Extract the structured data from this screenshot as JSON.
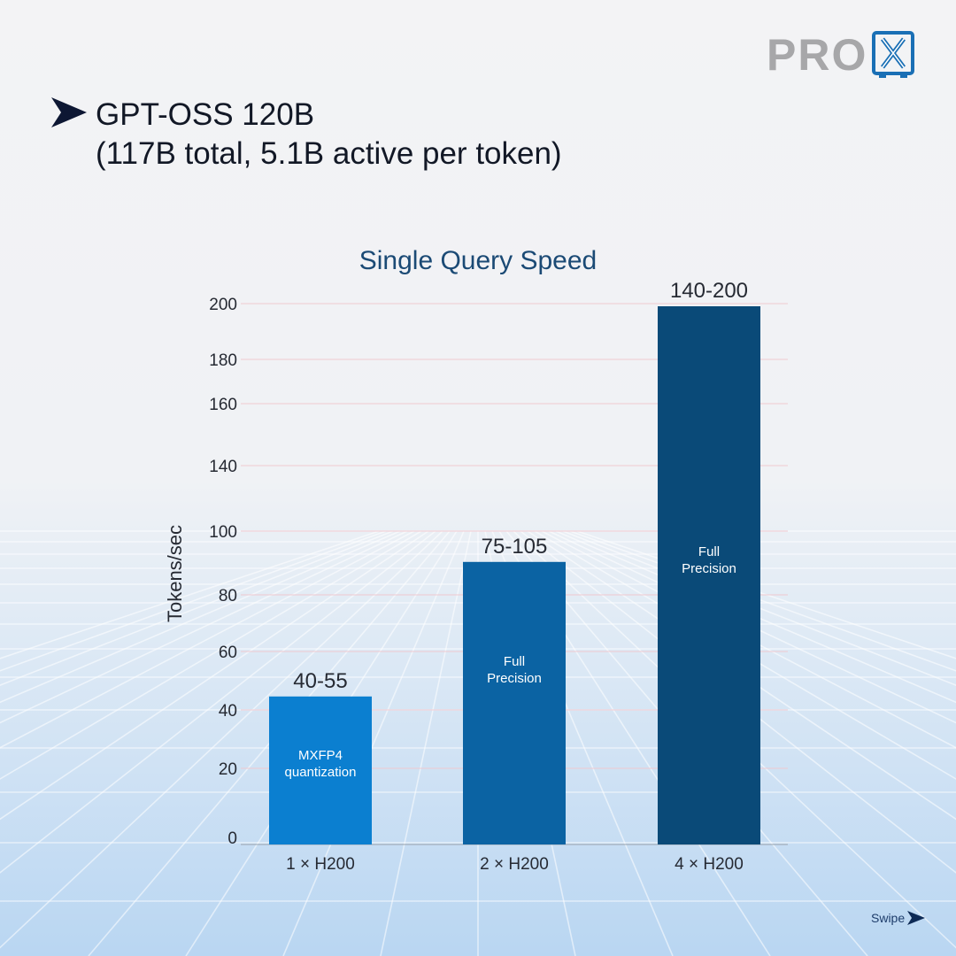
{
  "brand": {
    "logo_text": "PRO",
    "logo_mark": "X",
    "accent": "#1a6fb5",
    "logo_grey": "#a7a7a9"
  },
  "heading": {
    "icon": "chevron-arrow-icon",
    "line1": "GPT-OSS 120B",
    "line2": "(117B total, 5.1B active per token)"
  },
  "chart_data": {
    "type": "bar",
    "title": "Single Query Speed",
    "ylabel": "Tokens/sec",
    "xlabel": "",
    "ylim": [
      0,
      200
    ],
    "yticks": [
      0,
      20,
      40,
      60,
      80,
      100,
      140,
      160,
      180,
      200
    ],
    "grid": true,
    "categories": [
      "1 × H200",
      "2 × H200",
      "4 × H200"
    ],
    "values": [
      55,
      105,
      200
    ],
    "value_labels": [
      "40-55",
      "75-105",
      "140-200"
    ],
    "bar_notes": [
      [
        "MXFP4",
        "quantization"
      ],
      [
        "Full",
        "Precision"
      ],
      [
        "Full",
        "Precision"
      ]
    ],
    "colors": [
      "#0b7fd0",
      "#0b63a3",
      "#0a4a78"
    ]
  },
  "footer": {
    "swipe_label": "Swipe",
    "icon": "arrow-right-icon"
  }
}
